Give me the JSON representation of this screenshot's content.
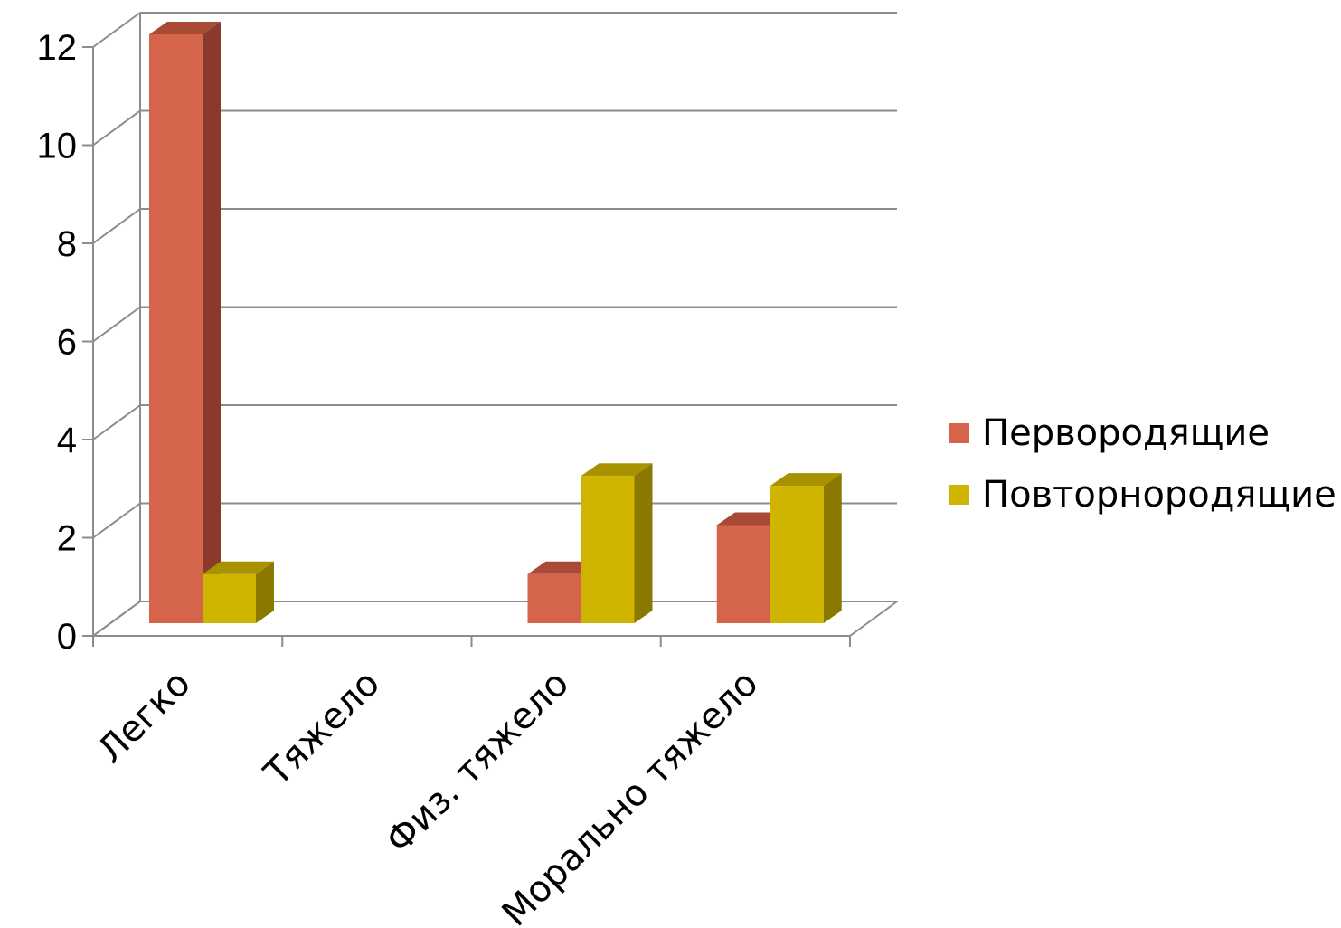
{
  "chart_data": {
    "type": "bar",
    "categories": [
      "Легко",
      "Тяжело",
      "Физ. тяжело",
      "Морально тяжело"
    ],
    "series": [
      {
        "name": "Первородящие",
        "values": [
          12,
          0,
          1,
          2
        ]
      },
      {
        "name": "Повторнородящие",
        "values": [
          1,
          0,
          3,
          2.8
        ]
      }
    ],
    "title": "",
    "xlabel": "",
    "ylabel": "",
    "ylim": [
      0,
      12
    ],
    "yticks": [
      "0",
      "2",
      "4",
      "6",
      "8",
      "10",
      "12"
    ],
    "grid": true,
    "legend": "right",
    "colors": {
      "Первородящие": {
        "front": "#d4644a",
        "side": "#8a3a2c",
        "top": "#a84a36"
      },
      "Повторнородящие": {
        "front": "#cfb400",
        "side": "#8a7800",
        "top": "#a89200"
      }
    }
  }
}
